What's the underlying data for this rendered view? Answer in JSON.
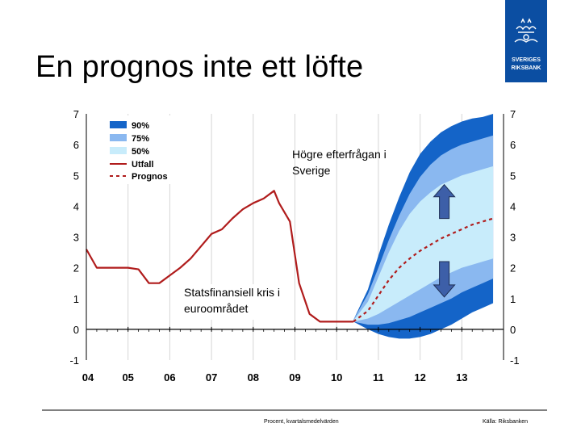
{
  "slide": {
    "title": "En prognos inte ett löfte",
    "logo_text_1": "SVERIGES",
    "logo_text_2": "RIKSBANK",
    "footer_note": "Procent, kvartalsmedelvärden",
    "footer_source": "Källa: Riksbanken"
  },
  "colors": {
    "band_90": "#1464c8",
    "band_75": "#8ab8f0",
    "band_50": "#c8ecfb",
    "outcome": "#b01c1c",
    "forecast": "#b01c1c",
    "arrow": "#3d5fa8",
    "logo": "#0b4ea2"
  },
  "chart_data": {
    "type": "area",
    "title": "",
    "xlabel": "",
    "ylabel": "",
    "ylim": [
      -1,
      7
    ],
    "yticks": [
      "-1",
      "0",
      "1",
      "2",
      "3",
      "4",
      "5",
      "6",
      "7"
    ],
    "xlim": [
      2004.0,
      2014.0
    ],
    "xticks": [
      "04",
      "05",
      "06",
      "07",
      "08",
      "09",
      "10",
      "11",
      "12",
      "13"
    ],
    "grid": "vertical",
    "legend": {
      "position": "top-left",
      "entries": [
        "90%",
        "75%",
        "50%",
        "Utfall",
        "Prognos"
      ]
    },
    "annotations": [
      {
        "text_lines": [
          "Högre efterfrågan i",
          "Sverige"
        ],
        "arrow": "up"
      },
      {
        "text_lines": [
          "Statsfinansiell kris i",
          "euroområdet"
        ],
        "arrow": "down"
      }
    ],
    "outcome": {
      "name": "Utfall",
      "x": [
        2004.0,
        2004.25,
        2004.5,
        2004.75,
        2005.0,
        2005.25,
        2005.5,
        2005.75,
        2006.0,
        2006.25,
        2006.5,
        2006.75,
        2007.0,
        2007.25,
        2007.5,
        2007.75,
        2008.0,
        2008.25,
        2008.5,
        2008.62,
        2008.88,
        2009.1,
        2009.35,
        2009.6,
        2009.85,
        2010.1,
        2010.4
      ],
      "values": [
        2.6,
        2.0,
        2.0,
        2.0,
        2.0,
        1.95,
        1.5,
        1.5,
        1.75,
        2.0,
        2.3,
        2.7,
        3.1,
        3.25,
        3.6,
        3.9,
        4.1,
        4.25,
        4.5,
        4.1,
        3.5,
        1.5,
        0.5,
        0.25,
        0.25,
        0.25,
        0.25
      ]
    },
    "forecast": {
      "name": "Prognos",
      "x": [
        2010.4,
        2010.75,
        2011.0,
        2011.25,
        2011.5,
        2011.75,
        2012.0,
        2012.25,
        2012.5,
        2012.75,
        2013.0,
        2013.25,
        2013.5,
        2013.75
      ],
      "values": [
        0.25,
        0.6,
        1.1,
        1.6,
        2.0,
        2.3,
        2.55,
        2.75,
        2.95,
        3.1,
        3.25,
        3.4,
        3.5,
        3.6
      ]
    },
    "bands": [
      {
        "name": "90%",
        "x": [
          2010.4,
          2010.75,
          2011.0,
          2011.25,
          2011.5,
          2011.75,
          2012.0,
          2012.25,
          2012.5,
          2012.75,
          2013.0,
          2013.25,
          2013.5,
          2013.75
        ],
        "lower": [
          0.25,
          0.0,
          -0.15,
          -0.25,
          -0.3,
          -0.3,
          -0.25,
          -0.15,
          0.0,
          0.15,
          0.35,
          0.55,
          0.7,
          0.85
        ],
        "upper": [
          0.3,
          1.3,
          2.4,
          3.4,
          4.3,
          5.1,
          5.7,
          6.1,
          6.4,
          6.6,
          6.75,
          6.85,
          6.9,
          7.0
        ]
      },
      {
        "name": "75%",
        "x": [
          2010.4,
          2010.75,
          2011.0,
          2011.25,
          2011.5,
          2011.75,
          2012.0,
          2012.25,
          2012.5,
          2012.75,
          2013.0,
          2013.25,
          2013.5,
          2013.75
        ],
        "lower": [
          0.25,
          0.15,
          0.15,
          0.2,
          0.3,
          0.4,
          0.55,
          0.7,
          0.85,
          1.0,
          1.2,
          1.35,
          1.5,
          1.65
        ],
        "upper": [
          0.3,
          1.15,
          2.0,
          2.9,
          3.7,
          4.4,
          4.95,
          5.35,
          5.65,
          5.85,
          6.0,
          6.1,
          6.2,
          6.3
        ]
      },
      {
        "name": "50%",
        "x": [
          2010.4,
          2010.75,
          2011.0,
          2011.25,
          2011.5,
          2011.75,
          2012.0,
          2012.25,
          2012.5,
          2012.75,
          2013.0,
          2013.25,
          2013.5,
          2013.75
        ],
        "lower": [
          0.25,
          0.35,
          0.5,
          0.7,
          0.9,
          1.1,
          1.3,
          1.5,
          1.7,
          1.85,
          2.0,
          2.1,
          2.2,
          2.3
        ],
        "upper": [
          0.28,
          0.9,
          1.7,
          2.5,
          3.2,
          3.75,
          4.15,
          4.45,
          4.7,
          4.85,
          5.0,
          5.1,
          5.2,
          5.3
        ]
      }
    ]
  }
}
